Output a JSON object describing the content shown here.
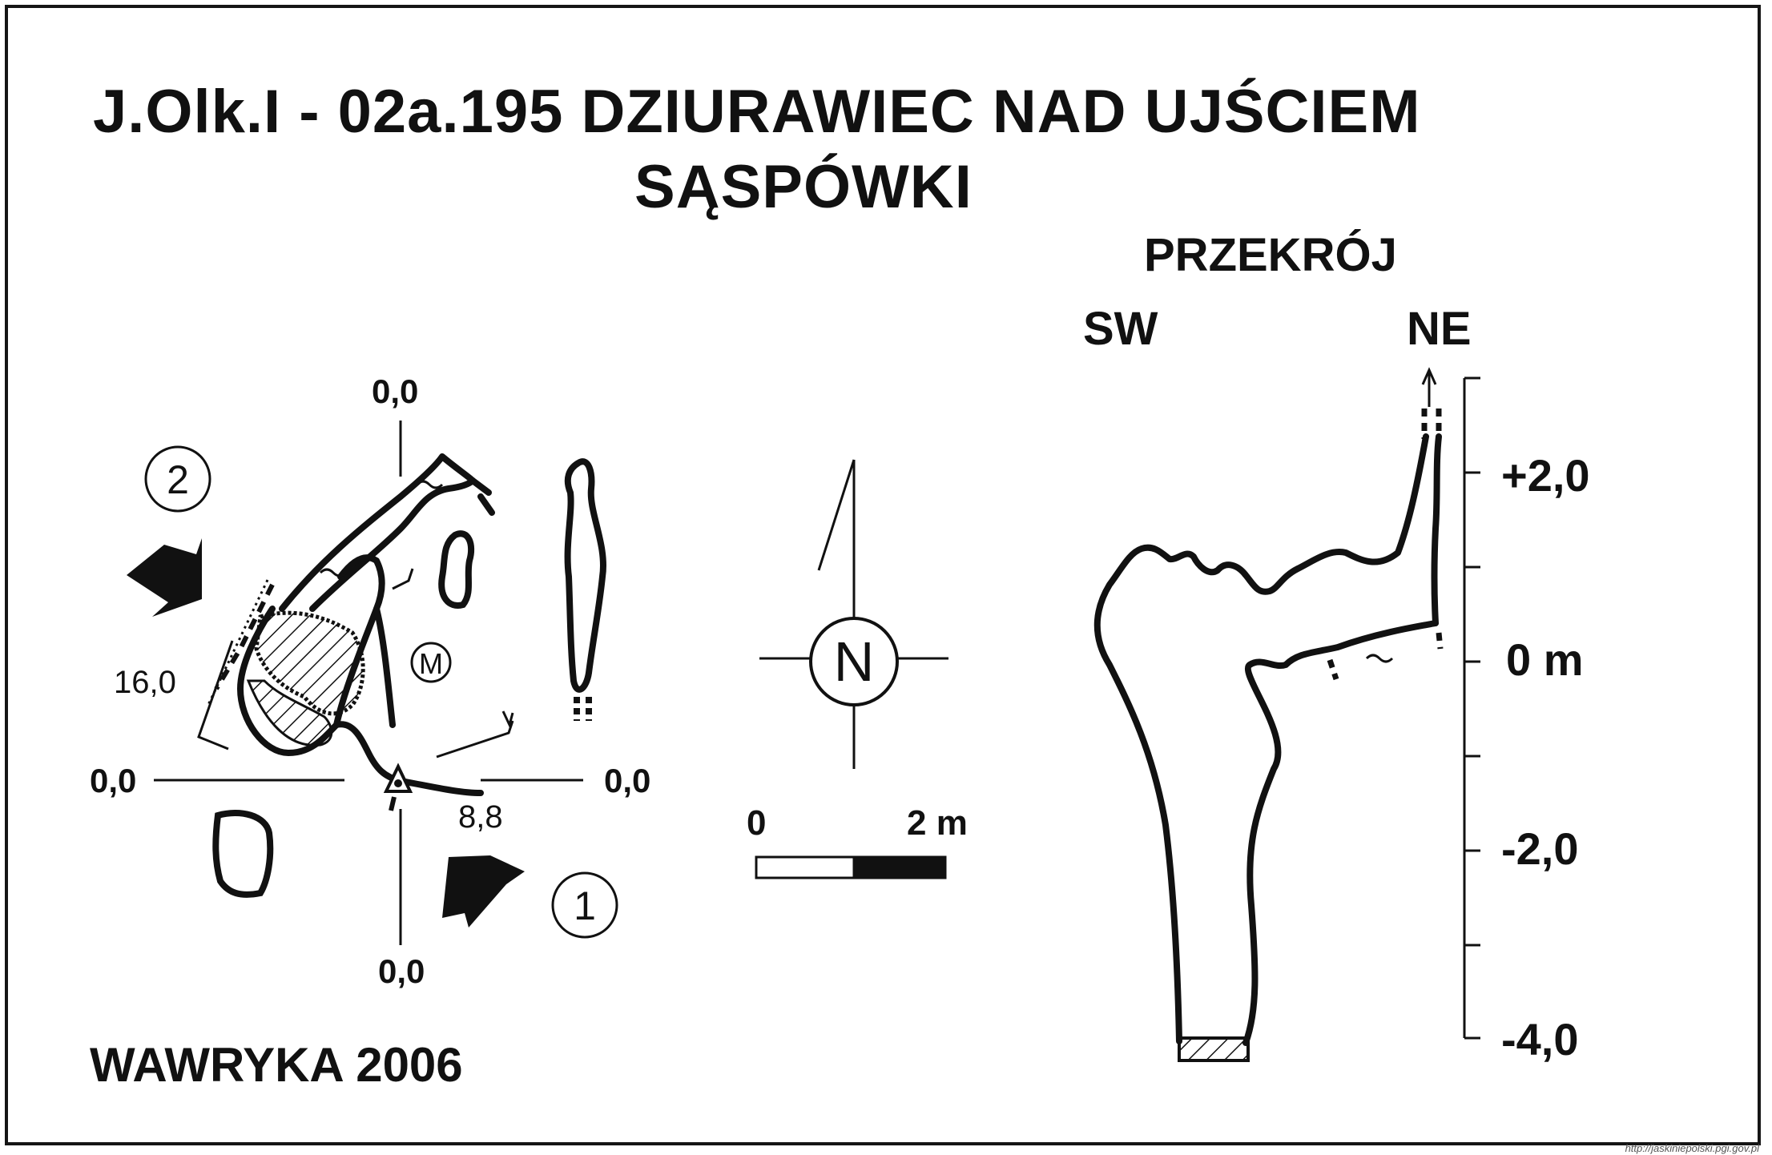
{
  "title": {
    "line1": "J.Olk.I - 02a.195  DZIURAWIEC NAD UJŚCIEM",
    "line2": "SĄSPÓWKI"
  },
  "plan": {
    "coords": {
      "top": "0,0",
      "left": "0,0",
      "right": "0,0",
      "bottom": "0,0"
    },
    "measure_left": "16,0",
    "measure_right": "8,8",
    "marker_m": "M",
    "entrance_1": "1",
    "entrance_2": "2"
  },
  "compass": {
    "letter": "N"
  },
  "scale": {
    "start": "0",
    "end": "2 m"
  },
  "section": {
    "title": "PRZEKRÓJ",
    "left_dir": "SW",
    "right_dir": "NE",
    "ticks": [
      "+2,0",
      "0 m",
      "-2,0",
      "-4,0"
    ]
  },
  "author": "WAWRYKA 2006",
  "credit": "http://jaskiniepolski.pgi.gov.pl"
}
